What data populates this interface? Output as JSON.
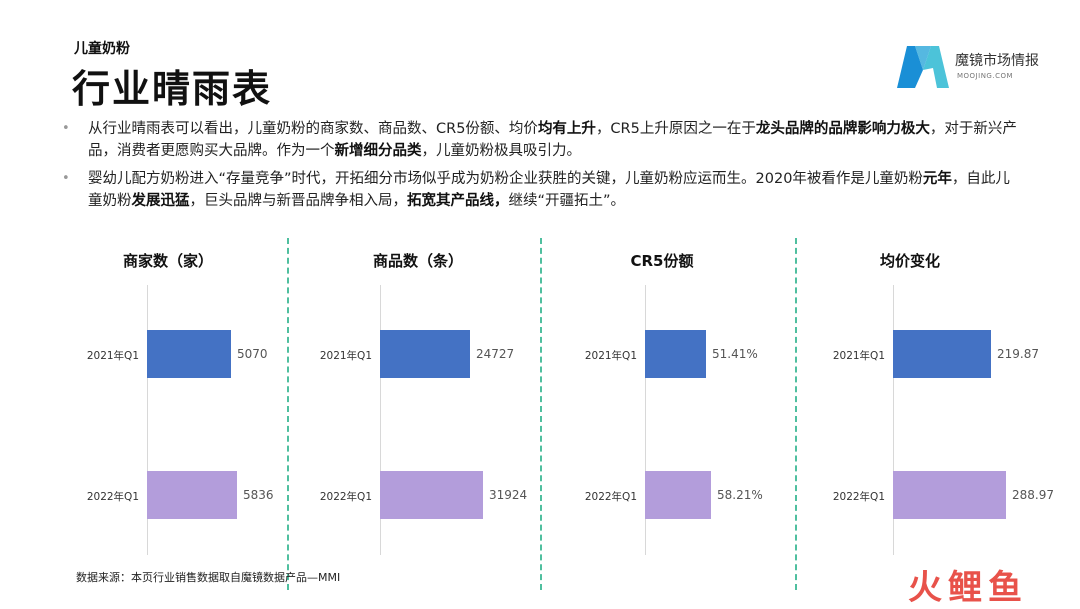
{
  "header": {
    "subtitle": "儿童奶粉",
    "title": "行业晴雨表"
  },
  "logo": {
    "brand": "魔镜市场情报",
    "site": "MOOJING.COM",
    "color_left": "#1a8fd6",
    "color_right": "#4cc3d9"
  },
  "bullets": [
    [
      {
        "t": "从行业晴雨表可以看出，儿童奶粉的商家数、商品数、CR5份额、均价",
        "b": false
      },
      {
        "t": "均有上升",
        "b": true
      },
      {
        "t": "，CR5上升原因之一在于",
        "b": false
      },
      {
        "t": "龙头品牌的品牌影响力极大",
        "b": true
      },
      {
        "t": "，对于新兴产品，消费者更愿购买大品牌。作为一个",
        "b": false
      },
      {
        "t": "新增细分品类",
        "b": true
      },
      {
        "t": "，儿童奶粉极具吸引力。",
        "b": false
      }
    ],
    [
      {
        "t": "婴幼儿配方奶粉进入“存量竞争”时代，开拓细分市场似乎成为奶粉企业获胜的关键，儿童奶粉应运而生。2020年被看作是儿童奶粉",
        "b": false
      },
      {
        "t": "元年",
        "b": true
      },
      {
        "t": "，自此儿童奶粉",
        "b": false
      },
      {
        "t": "发展迅猛",
        "b": true
      },
      {
        "t": "，巨头品牌与新晋品牌争相入局，",
        "b": false
      },
      {
        "t": "拓宽其产品线，",
        "b": true
      },
      {
        "t": "继续“开疆拓土”。",
        "b": false
      }
    ]
  ],
  "chart_data": [
    {
      "type": "bar",
      "title": "商家数（家）",
      "categories": [
        "2021年Q1",
        "2022年Q1"
      ],
      "values": [
        5070,
        5836
      ],
      "value_labels": [
        "5070",
        "5836"
      ],
      "colors": [
        "#4472c4",
        "#b39ddb"
      ]
    },
    {
      "type": "bar",
      "title": "商品数（条）",
      "categories": [
        "2021年Q1",
        "2022年Q1"
      ],
      "values": [
        24727,
        31924
      ],
      "value_labels": [
        "24727",
        "31924"
      ],
      "colors": [
        "#4472c4",
        "#b39ddb"
      ]
    },
    {
      "type": "bar",
      "title": "CR5份额",
      "categories": [
        "2021年Q1",
        "2022年Q1"
      ],
      "values": [
        51.41,
        58.21
      ],
      "value_labels": [
        "51.41%",
        "58.21%"
      ],
      "colors": [
        "#4472c4",
        "#b39ddb"
      ]
    },
    {
      "type": "bar",
      "title": "均价变化",
      "categories": [
        "2021年Q1",
        "2022年Q1"
      ],
      "values": [
        219.87,
        288.97
      ],
      "value_labels": [
        "219.87",
        "288.97"
      ],
      "colors": [
        "#4472c4",
        "#b39ddb"
      ]
    }
  ],
  "footer": {
    "source": "数据来源：本页行业销售数据取自魔镜数据产品—MMI"
  },
  "watermark": {
    "c1": "火",
    "c2": "鲤",
    "c3": "鱼"
  },
  "accent_divider_color": "#4fbf9f"
}
